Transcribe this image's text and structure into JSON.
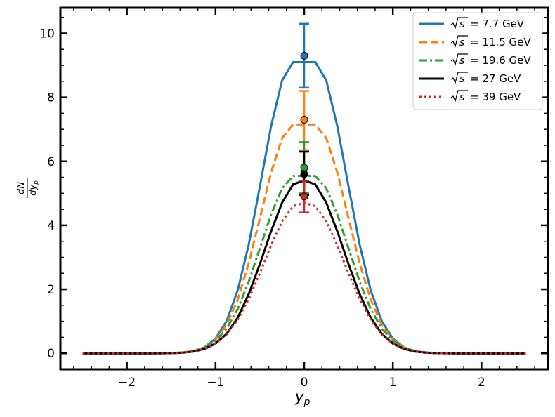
{
  "chart_data": {
    "type": "line",
    "xlabel": "y_p",
    "ylabel_num": "dN",
    "ylabel_den": "dy_p",
    "xlim": [
      -2.75,
      2.75
    ],
    "ylim": [
      -0.5,
      10.8
    ],
    "x_ticks": [
      -2,
      -1,
      0,
      1,
      2
    ],
    "x_tick_labels": [
      "−2",
      "−1",
      "0",
      "1",
      "2"
    ],
    "y_ticks": [
      0,
      2,
      4,
      6,
      8,
      10
    ],
    "y_tick_labels": [
      "0",
      "2",
      "4",
      "6",
      "8",
      "10"
    ],
    "grid": false,
    "legend_position": "top-right",
    "series": [
      {
        "name": "√s = 7.7 GeV",
        "label_value": "7.7",
        "color": "#1f77b4",
        "dash": "solid",
        "peak": 9.1,
        "sigma": 0.36,
        "plateau": 0.12,
        "point": {
          "x": 0,
          "y": 9.3,
          "err_low": 8.3,
          "err_high": 10.3
        }
      },
      {
        "name": "√s = 11.5 GeV",
        "label_value": "11.5",
        "color": "#ff7f0e",
        "dash": "dashed",
        "peak": 7.15,
        "sigma": 0.37,
        "plateau": 0.12,
        "point": {
          "x": 0,
          "y": 7.3,
          "err_low": 6.35,
          "err_high": 8.2
        }
      },
      {
        "name": "√s = 19.6 GeV",
        "label_value": "19.6",
        "color": "#2ca02c",
        "dash": "dashdot",
        "peak": 5.55,
        "sigma": 0.39,
        "plateau": 0.1,
        "point": {
          "x": 0,
          "y": 5.8,
          "err_low": 5.0,
          "err_high": 6.6
        }
      },
      {
        "name": "√s = 27 GeV",
        "label_value": "27",
        "color": "#000000",
        "dash": "solid",
        "peak": 5.4,
        "sigma": 0.4,
        "plateau": 0.04,
        "point": {
          "x": 0,
          "y": 5.6,
          "err_low": 4.95,
          "err_high": 6.3
        }
      },
      {
        "name": "√s = 39 GeV",
        "label_value": "39",
        "color": "#d62728",
        "dash": "dotted",
        "peak": 4.7,
        "sigma": 0.41,
        "plateau": 0.04,
        "point": {
          "x": 0,
          "y": 4.9,
          "err_low": 4.4,
          "err_high": 5.4
        }
      }
    ],
    "legend_prefix": "= ",
    "legend_unit": " GeV"
  }
}
